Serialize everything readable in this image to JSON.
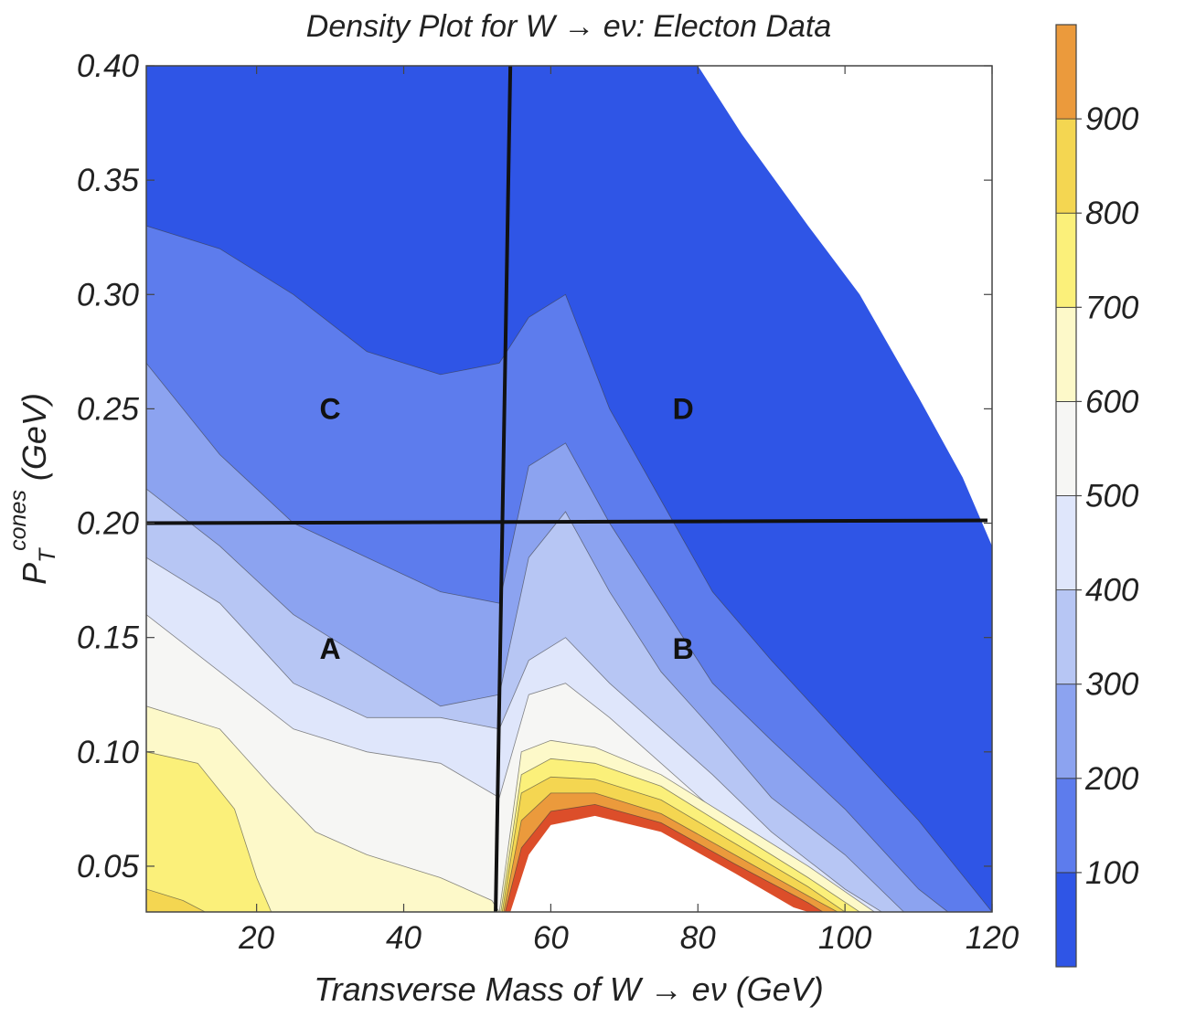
{
  "chart_data": {
    "type": "heatmap",
    "subtype": "contour-density",
    "title": "Density Plot for W → eν: Electon Data",
    "xlabel": "Transverse Mass of W → eν (GeV)",
    "ylabel_main": "P",
    "ylabel_sub": "T",
    "ylabel_sup": "cones",
    "ylabel_unit": "(GeV)",
    "xlim": [
      5,
      120
    ],
    "ylim": [
      0.03,
      0.4
    ],
    "x_ticks": [
      20,
      40,
      60,
      80,
      100,
      120
    ],
    "x_tick_labels": [
      "20",
      "40",
      "60",
      "80",
      "100",
      "120"
    ],
    "y_ticks": [
      0.05,
      0.1,
      0.15,
      0.2,
      0.25,
      0.3,
      0.35,
      0.4
    ],
    "y_tick_labels": [
      "0.05",
      "0.10",
      "0.15",
      "0.20",
      "0.25",
      "0.30",
      "0.35",
      "0.40"
    ],
    "grid": false,
    "colorbar": {
      "range": [
        0,
        1000
      ],
      "ticks": [
        100,
        200,
        300,
        400,
        500,
        600,
        700,
        800,
        900
      ],
      "tick_labels": [
        "100",
        "200",
        "300",
        "400",
        "500",
        "600",
        "700",
        "800",
        "900"
      ],
      "colors": [
        "#2f55e6",
        "#5d7ced",
        "#8ca3f0",
        "#b7c6f4",
        "#dfe6fb",
        "#f6f6f4",
        "#fdf9c9",
        "#fbf07a",
        "#f4d651",
        "#eb9a3c",
        "#dc4e2a"
      ]
    },
    "cut_lines": {
      "vertical": {
        "x_top": 54.5,
        "x_bottom": 52.5
      },
      "horizontal": {
        "y": 0.2,
        "x_from": 5,
        "x_to": 119
      }
    },
    "regions": [
      {
        "label": "C",
        "x": 30,
        "y": 0.25
      },
      {
        "label": "D",
        "x": 78,
        "y": 0.25
      },
      {
        "label": "A",
        "x": 30,
        "y": 0.145
      },
      {
        "label": "B",
        "x": 78,
        "y": 0.145
      }
    ],
    "density_levels": [
      {
        "level": 100,
        "color": "#5d7ced",
        "boundary": [
          [
            5,
            0.33
          ],
          [
            15,
            0.32
          ],
          [
            25,
            0.3
          ],
          [
            35,
            0.275
          ],
          [
            45,
            0.265
          ],
          [
            53,
            0.27
          ],
          [
            57,
            0.29
          ],
          [
            62,
            0.3
          ],
          [
            68,
            0.25
          ],
          [
            75,
            0.21
          ],
          [
            82,
            0.17
          ],
          [
            90,
            0.14
          ],
          [
            100,
            0.105
          ],
          [
            110,
            0.07
          ],
          [
            120,
            0.03
          ]
        ]
      },
      {
        "level": 200,
        "color": "#8ca3f0",
        "boundary": [
          [
            5,
            0.27
          ],
          [
            15,
            0.23
          ],
          [
            25,
            0.2
          ],
          [
            35,
            0.185
          ],
          [
            45,
            0.17
          ],
          [
            53,
            0.165
          ],
          [
            57,
            0.225
          ],
          [
            62,
            0.235
          ],
          [
            68,
            0.2
          ],
          [
            75,
            0.165
          ],
          [
            82,
            0.13
          ],
          [
            90,
            0.105
          ],
          [
            100,
            0.075
          ],
          [
            110,
            0.04
          ],
          [
            114,
            0.03
          ]
        ]
      },
      {
        "level": 300,
        "color": "#b7c6f4",
        "boundary": [
          [
            5,
            0.215
          ],
          [
            15,
            0.19
          ],
          [
            25,
            0.16
          ],
          [
            35,
            0.14
          ],
          [
            45,
            0.12
          ],
          [
            53,
            0.125
          ],
          [
            57,
            0.185
          ],
          [
            62,
            0.205
          ],
          [
            68,
            0.17
          ],
          [
            75,
            0.135
          ],
          [
            82,
            0.11
          ],
          [
            90,
            0.08
          ],
          [
            100,
            0.055
          ],
          [
            108,
            0.03
          ]
        ]
      },
      {
        "level": 400,
        "color": "#dfe6fb",
        "boundary": [
          [
            5,
            0.185
          ],
          [
            15,
            0.165
          ],
          [
            25,
            0.13
          ],
          [
            35,
            0.115
          ],
          [
            45,
            0.115
          ],
          [
            53,
            0.11
          ],
          [
            57,
            0.14
          ],
          [
            62,
            0.15
          ],
          [
            68,
            0.13
          ],
          [
            75,
            0.11
          ],
          [
            82,
            0.09
          ],
          [
            90,
            0.065
          ],
          [
            100,
            0.04
          ],
          [
            105,
            0.03
          ]
        ]
      },
      {
        "level": 500,
        "color": "#f6f6f4",
        "boundary": [
          [
            5,
            0.16
          ],
          [
            15,
            0.135
          ],
          [
            25,
            0.11
          ],
          [
            35,
            0.1
          ],
          [
            45,
            0.095
          ],
          [
            53,
            0.08
          ],
          [
            57,
            0.125
          ],
          [
            62,
            0.13
          ],
          [
            68,
            0.115
          ],
          [
            75,
            0.095
          ],
          [
            82,
            0.075
          ],
          [
            90,
            0.055
          ],
          [
            100,
            0.035
          ],
          [
            103,
            0.03
          ]
        ]
      },
      {
        "level": 600,
        "color": "#fdf9c9",
        "boundary": [
          [
            5,
            0.12
          ],
          [
            15,
            0.11
          ],
          [
            22,
            0.085
          ],
          [
            28,
            0.065
          ],
          [
            35,
            0.055
          ],
          [
            45,
            0.045
          ],
          [
            52,
            0.035
          ],
          [
            53,
            0.03
          ]
        ]
      },
      {
        "level": 700,
        "color": "#fbf07a",
        "boundary": [
          [
            5,
            0.1
          ],
          [
            12,
            0.095
          ],
          [
            17,
            0.075
          ],
          [
            20,
            0.045
          ],
          [
            22,
            0.03
          ]
        ]
      },
      {
        "level": 800,
        "color": "#f4d651",
        "boundary": [
          [
            5,
            0.04
          ],
          [
            10,
            0.035
          ],
          [
            13,
            0.03
          ]
        ]
      }
    ],
    "peak_bands": [
      {
        "level": 600,
        "color": "#fdf9c9",
        "boundary": [
          [
            53,
            0.03
          ],
          [
            56,
            0.1
          ],
          [
            60,
            0.105
          ],
          [
            66,
            0.102
          ],
          [
            75,
            0.09
          ],
          [
            85,
            0.07
          ],
          [
            95,
            0.05
          ],
          [
            104,
            0.03
          ]
        ]
      },
      {
        "level": 700,
        "color": "#fbf07a",
        "boundary": [
          [
            53.2,
            0.03
          ],
          [
            56,
            0.09
          ],
          [
            60,
            0.097
          ],
          [
            66,
            0.095
          ],
          [
            75,
            0.085
          ],
          [
            85,
            0.065
          ],
          [
            95,
            0.045
          ],
          [
            102,
            0.03
          ]
        ]
      },
      {
        "level": 800,
        "color": "#f4d651",
        "boundary": [
          [
            53.4,
            0.03
          ],
          [
            56,
            0.082
          ],
          [
            60,
            0.089
          ],
          [
            66,
            0.088
          ],
          [
            75,
            0.079
          ],
          [
            85,
            0.06
          ],
          [
            95,
            0.041
          ],
          [
            100,
            0.03
          ]
        ]
      },
      {
        "level": 900,
        "color": "#eb9a3c",
        "boundary": [
          [
            53.6,
            0.03
          ],
          [
            56,
            0.07
          ],
          [
            60,
            0.082
          ],
          [
            66,
            0.082
          ],
          [
            75,
            0.073
          ],
          [
            85,
            0.055
          ],
          [
            95,
            0.037
          ],
          [
            99,
            0.03
          ]
        ]
      },
      {
        "level": 1000,
        "color": "#dc4e2a",
        "boundary": [
          [
            53.8,
            0.03
          ],
          [
            56,
            0.058
          ],
          [
            60,
            0.074
          ],
          [
            66,
            0.077
          ],
          [
            75,
            0.069
          ],
          [
            85,
            0.051
          ],
          [
            95,
            0.034
          ],
          [
            97,
            0.03
          ]
        ]
      },
      {
        "level": 1100,
        "color": "#ffffff",
        "boundary": [
          [
            54.5,
            0.03
          ],
          [
            57,
            0.055
          ],
          [
            60,
            0.068
          ],
          [
            66,
            0.072
          ],
          [
            75,
            0.065
          ],
          [
            85,
            0.047
          ],
          [
            93,
            0.032
          ],
          [
            95,
            0.03
          ]
        ]
      }
    ],
    "white_area": [
      [
        69,
        0.4
      ],
      [
        80,
        0.4
      ],
      [
        86,
        0.37
      ],
      [
        95,
        0.33
      ],
      [
        102,
        0.3
      ],
      [
        110,
        0.255
      ],
      [
        116,
        0.22
      ],
      [
        120,
        0.19
      ],
      [
        120,
        0.4
      ]
    ]
  }
}
